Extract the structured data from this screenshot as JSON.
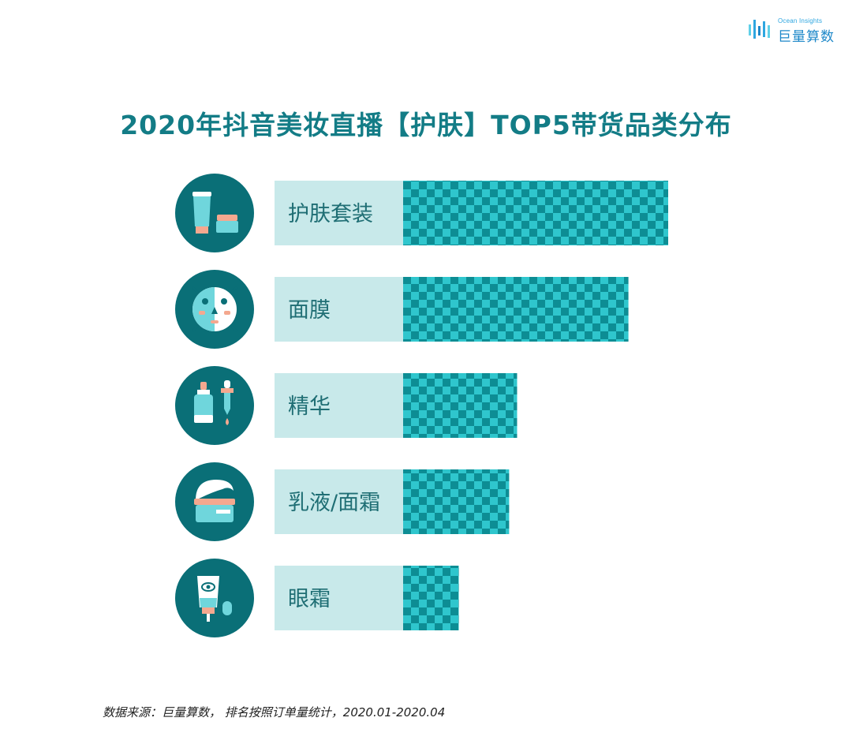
{
  "brand": {
    "name_en": "Ocean Insights",
    "name_cn": "巨量算数"
  },
  "colors": {
    "title": "#137c86",
    "icon_circle": "#0a6f77",
    "label_bg": "#c8e9ea",
    "bar_dark": "#0d8d94",
    "bar_light": "#2fc6cd",
    "icon_cyan": "#6fd6dc",
    "icon_pink": "#f4a88f",
    "icon_white": "#ffffff"
  },
  "chart_data": {
    "type": "bar",
    "title": "2020年抖音美妆直播【护肤】TOP5带货品类分布",
    "categories": [
      "护肤套装",
      "面膜",
      "精华",
      "乳液/面霜",
      "眼霜"
    ],
    "values": [
      100,
      85,
      43,
      40,
      21
    ],
    "icons": [
      "skincare-set-icon",
      "face-mask-icon",
      "serum-dropper-icon",
      "cream-jar-icon",
      "eye-cream-tube-icon"
    ],
    "xlim": [
      0,
      100
    ],
    "grid": false,
    "legend": "none"
  },
  "footnote": "数据来源：巨量算数， 排名按照订单量统计，2020.01-2020.04"
}
